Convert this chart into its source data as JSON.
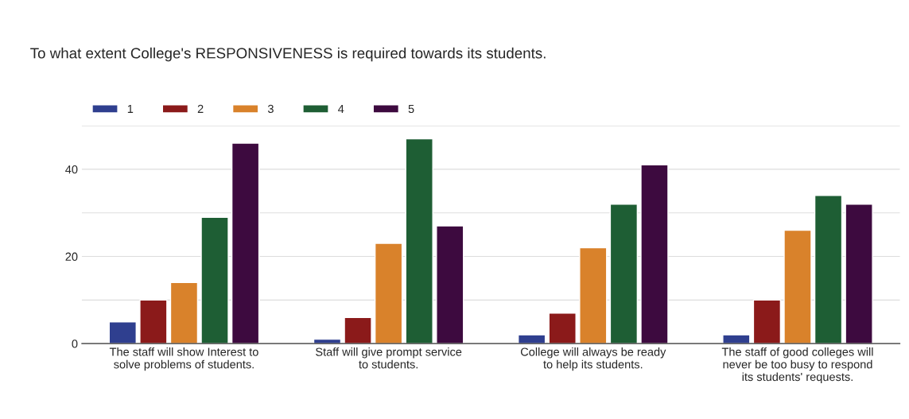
{
  "chart_data": {
    "type": "bar",
    "title": "To what extent College's RESPONSIVENESS is required towards its students.",
    "categories": [
      "The staff will show Interest to\nsolve problems of students.",
      "Staff will give prompt service\nto students.",
      "College will always be ready\nto help its students.",
      "The staff of good colleges will\nnever be too busy to respond\nits students' requests."
    ],
    "series": [
      {
        "name": "1",
        "color": "#2f3f8f",
        "values": [
          5,
          1,
          2,
          2
        ]
      },
      {
        "name": "2",
        "color": "#8b1a1a",
        "values": [
          10,
          6,
          7,
          10
        ]
      },
      {
        "name": "3",
        "color": "#d9822b",
        "values": [
          14,
          23,
          22,
          26
        ]
      },
      {
        "name": "4",
        "color": "#1e5e34",
        "values": [
          29,
          47,
          32,
          34
        ]
      },
      {
        "name": "5",
        "color": "#3d0a3f",
        "values": [
          46,
          27,
          41,
          32
        ]
      }
    ],
    "ylim": [
      0,
      50
    ],
    "yticks": [
      0,
      {
        "value": 10,
        "label": null
      },
      20,
      {
        "value": 30,
        "label": null
      },
      40,
      {
        "value": 50,
        "label": null
      }
    ],
    "grid": "y",
    "legend": "top left"
  }
}
